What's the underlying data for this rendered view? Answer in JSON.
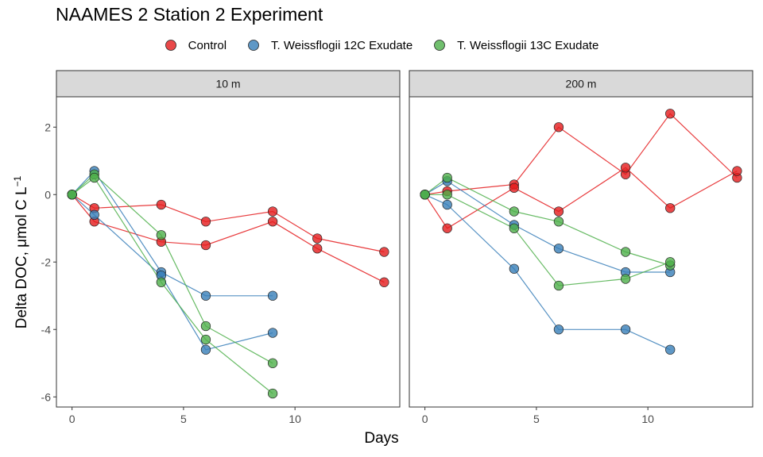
{
  "chart_data": {
    "type": "scatter",
    "title": "NAAMES 2 Station 2 Experiment",
    "xlabel": "Days",
    "ylabel": "Delta DOC, μmol C L",
    "ylabel_superscript": "−1",
    "xlim": [
      -0.7,
      14.7
    ],
    "ylim": [
      -6.3,
      2.9
    ],
    "x_ticks": [
      0,
      5,
      10
    ],
    "y_ticks": [
      2,
      0,
      -2,
      -4,
      -6
    ],
    "y_tick_labels": [
      "2",
      "0",
      "-2",
      "-4",
      "-6"
    ],
    "grid": false,
    "legend_position": "top",
    "legend": [
      {
        "name": "Control",
        "color": "#e41a1c"
      },
      {
        "name": "T. Weissflogii 12C Exudate",
        "color": "#377eb8"
      },
      {
        "name": "T. Weissflogii 13C Exudate",
        "color": "#4daf4a"
      }
    ],
    "panels": [
      {
        "label": "10 m",
        "series": [
          {
            "group": "Control",
            "x": [
              0,
              1,
              4,
              6,
              9,
              11,
              14
            ],
            "y": [
              0,
              -0.4,
              -0.3,
              -0.8,
              -0.5,
              -1.3,
              -1.7
            ]
          },
          {
            "group": "Control",
            "x": [
              0,
              1,
              4,
              6,
              9,
              11,
              14
            ],
            "y": [
              0,
              -0.8,
              -1.4,
              -1.5,
              -0.8,
              -1.6,
              -2.6
            ]
          },
          {
            "group": "T. Weissflogii 12C Exudate",
            "x": [
              0,
              1,
              4,
              6,
              9
            ],
            "y": [
              0,
              0.7,
              -2.3,
              -3.0,
              -3.0
            ]
          },
          {
            "group": "T. Weissflogii 12C Exudate",
            "x": [
              0,
              1,
              4,
              6,
              9
            ],
            "y": [
              0,
              -0.6,
              -2.4,
              -4.6,
              -4.1
            ]
          },
          {
            "group": "T. Weissflogii 13C Exudate",
            "x": [
              0,
              1,
              4,
              6,
              9
            ],
            "y": [
              0,
              0.6,
              -1.2,
              -3.9,
              -5.0
            ]
          },
          {
            "group": "T. Weissflogii 13C Exudate",
            "x": [
              0,
              1,
              4,
              6,
              9
            ],
            "y": [
              0,
              0.5,
              -2.6,
              -4.3,
              -5.9
            ]
          }
        ]
      },
      {
        "label": "200 m",
        "series": [
          {
            "group": "Control",
            "x": [
              0,
              1,
              4,
              6,
              9,
              11,
              14
            ],
            "y": [
              0,
              0.1,
              0.3,
              2.0,
              0.6,
              2.4,
              0.5
            ]
          },
          {
            "group": "Control",
            "x": [
              0,
              1,
              4,
              6,
              9,
              11,
              14
            ],
            "y": [
              0,
              -1.0,
              0.2,
              -0.5,
              0.8,
              -0.4,
              0.7
            ]
          },
          {
            "group": "T. Weissflogii 12C Exudate",
            "x": [
              0,
              1,
              4,
              6,
              9,
              11
            ],
            "y": [
              0,
              0.4,
              -0.9,
              -1.6,
              -2.3,
              -2.3
            ]
          },
          {
            "group": "T. Weissflogii 12C Exudate",
            "x": [
              0,
              1,
              4,
              6,
              9,
              11
            ],
            "y": [
              0,
              -0.3,
              -2.2,
              -4.0,
              -4.0,
              -4.6
            ]
          },
          {
            "group": "T. Weissflogii 13C Exudate",
            "x": [
              0,
              1,
              4,
              6,
              9,
              11
            ],
            "y": [
              0,
              0.5,
              -0.5,
              -0.8,
              -1.7,
              -2.1
            ]
          },
          {
            "group": "T. Weissflogii 13C Exudate",
            "x": [
              0,
              1,
              4,
              6,
              9,
              11
            ],
            "y": [
              0,
              0.0,
              -1.0,
              -2.7,
              -2.5,
              -2.0
            ]
          }
        ]
      }
    ]
  }
}
